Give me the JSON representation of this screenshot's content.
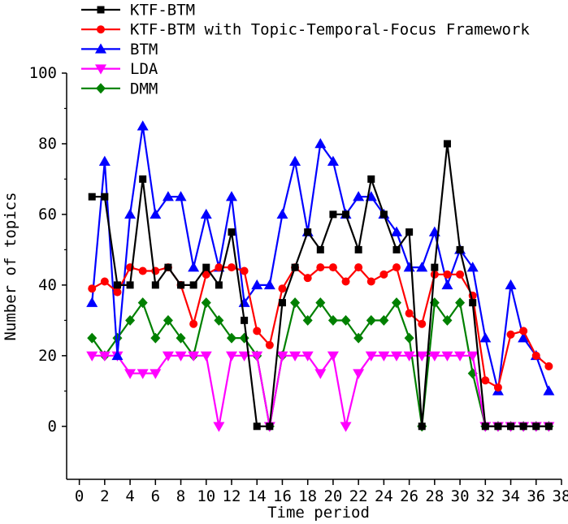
{
  "chart_data": {
    "type": "line",
    "title": "",
    "xlabel": "Time period",
    "ylabel": "Number of topics",
    "xlim": [
      -1,
      38
    ],
    "ylim": [
      -15,
      100
    ],
    "xticks": [
      0,
      2,
      4,
      6,
      8,
      10,
      12,
      14,
      16,
      18,
      20,
      22,
      24,
      26,
      28,
      30,
      32,
      34,
      36,
      38
    ],
    "yticks": [
      0,
      20,
      40,
      60,
      80,
      100
    ],
    "grid": false,
    "legend_position": "top-left",
    "series": [
      {
        "name": "KTF-BTM",
        "color": "#000000",
        "marker": "square",
        "x": [
          1,
          2,
          3,
          4,
          5,
          6,
          7,
          8,
          9,
          10,
          11,
          12,
          13,
          14,
          15,
          16,
          17,
          18,
          19,
          20,
          21,
          22,
          23,
          24,
          25,
          26,
          27,
          28,
          29,
          30,
          31,
          32,
          33,
          34,
          35,
          36,
          37
        ],
        "values": [
          65,
          65,
          40,
          40,
          70,
          40,
          45,
          40,
          40,
          45,
          40,
          55,
          30,
          0,
          0,
          35,
          45,
          55,
          50,
          60,
          60,
          50,
          70,
          60,
          50,
          55,
          0,
          45,
          80,
          50,
          35,
          0,
          0,
          0,
          0,
          0,
          0
        ]
      },
      {
        "name": "KTF-BTM with Topic-Temporal-Focus Framework",
        "color": "#ff0000",
        "marker": "circle",
        "x": [
          1,
          2,
          3,
          4,
          5,
          6,
          7,
          8,
          9,
          10,
          11,
          12,
          13,
          14,
          15,
          16,
          17,
          18,
          19,
          20,
          21,
          22,
          23,
          24,
          25,
          26,
          27,
          28,
          29,
          30,
          31,
          32,
          33,
          34,
          35,
          36,
          37
        ],
        "values": [
          39,
          41,
          38,
          45,
          44,
          44,
          45,
          40,
          29,
          43,
          45,
          45,
          44,
          27,
          23,
          39,
          45,
          42,
          45,
          45,
          41,
          45,
          41,
          43,
          45,
          32,
          29,
          43,
          43,
          43,
          37,
          13,
          11,
          26,
          27,
          20,
          17
        ]
      },
      {
        "name": "BTM",
        "color": "#0000ff",
        "marker": "triangle-up",
        "x": [
          1,
          2,
          3,
          4,
          5,
          6,
          7,
          8,
          9,
          10,
          11,
          12,
          13,
          14,
          15,
          16,
          17,
          18,
          19,
          20,
          21,
          22,
          23,
          24,
          25,
          26,
          27,
          28,
          29,
          30,
          31,
          32,
          33,
          34,
          35,
          36,
          37
        ],
        "values": [
          35,
          75,
          20,
          60,
          85,
          60,
          65,
          65,
          45,
          60,
          45,
          65,
          35,
          40,
          40,
          60,
          75,
          55,
          80,
          75,
          60,
          65,
          65,
          60,
          55,
          45,
          45,
          55,
          40,
          50,
          45,
          25,
          10,
          40,
          25,
          20,
          10
        ]
      },
      {
        "name": "LDA",
        "color": "#ff00ff",
        "marker": "triangle-down",
        "x": [
          1,
          2,
          3,
          4,
          5,
          6,
          7,
          8,
          9,
          10,
          11,
          12,
          13,
          14,
          15,
          16,
          17,
          18,
          19,
          20,
          21,
          22,
          23,
          24,
          25,
          26,
          27,
          28,
          29,
          30,
          31,
          32,
          33,
          34,
          35,
          36,
          37
        ],
        "values": [
          20,
          20,
          20,
          15,
          15,
          15,
          20,
          20,
          20,
          20,
          0,
          20,
          20,
          20,
          0,
          20,
          20,
          20,
          15,
          20,
          0,
          15,
          20,
          20,
          20,
          20,
          20,
          20,
          20,
          20,
          20,
          0,
          0,
          0,
          0,
          0,
          0
        ]
      },
      {
        "name": "DMM",
        "color": "#008000",
        "marker": "diamond",
        "x": [
          1,
          2,
          3,
          4,
          5,
          6,
          7,
          8,
          9,
          10,
          11,
          12,
          13,
          14,
          15,
          16,
          17,
          18,
          19,
          20,
          21,
          22,
          23,
          24,
          25,
          26,
          27,
          28,
          29,
          30,
          31,
          32,
          33,
          34,
          35,
          36,
          37
        ],
        "values": [
          25,
          20,
          25,
          30,
          35,
          25,
          30,
          25,
          20,
          35,
          30,
          25,
          25,
          20,
          0,
          20,
          35,
          30,
          35,
          30,
          30,
          25,
          30,
          30,
          35,
          25,
          0,
          35,
          30,
          35,
          15,
          0,
          0,
          0,
          0,
          0,
          0
        ]
      }
    ]
  }
}
